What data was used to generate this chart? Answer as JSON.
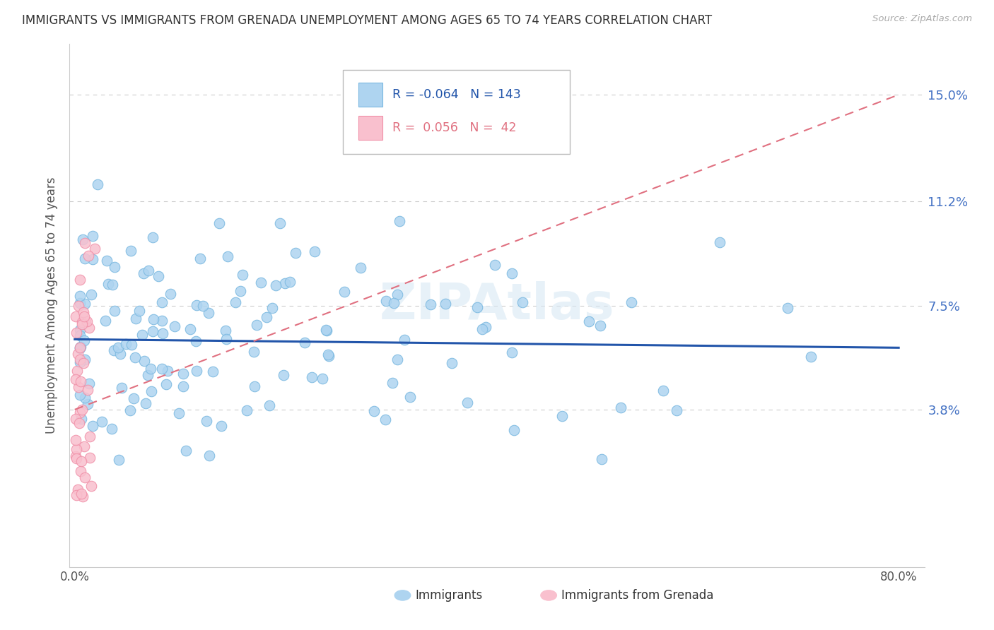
{
  "title": "IMMIGRANTS VS IMMIGRANTS FROM GRENADA UNEMPLOYMENT AMONG AGES 65 TO 74 YEARS CORRELATION CHART",
  "source": "Source: ZipAtlas.com",
  "ylabel": "Unemployment Among Ages 65 to 74 years",
  "xlim_min": -0.005,
  "xlim_max": 0.825,
  "ylim_min": -0.018,
  "ylim_max": 0.168,
  "ytick_positions": [
    0.038,
    0.075,
    0.112,
    0.15
  ],
  "ytick_labels": [
    "3.8%",
    "7.5%",
    "11.2%",
    "15.0%"
  ],
  "xtick_positions": [
    0.0,
    0.1,
    0.2,
    0.3,
    0.4,
    0.5,
    0.6,
    0.7,
    0.8
  ],
  "xtick_labels": [
    "0.0%",
    "",
    "",
    "",
    "",
    "",
    "",
    "",
    "80.0%"
  ],
  "blue_fill_color": "#aed4f0",
  "blue_edge_color": "#7ab8e0",
  "pink_fill_color": "#f9c0ce",
  "pink_edge_color": "#f090a8",
  "blue_line_color": "#2255aa",
  "pink_line_color": "#e07080",
  "grid_color": "#cccccc",
  "bg_color": "#ffffff",
  "title_color": "#333333",
  "source_color": "#aaaaaa",
  "ytick_color": "#4472c4",
  "xtick_color": "#555555",
  "ylabel_color": "#555555",
  "blue_trend_y0": 0.063,
  "blue_trend_y1": 0.06,
  "pink_trend_y0": 0.038,
  "pink_trend_y1": 0.15,
  "legend_label1": "Immigrants",
  "legend_label2": "Immigrants from Grenada",
  "watermark_color": "#d8e8f4",
  "watermark_alpha": 0.6,
  "n_blue": 143,
  "n_pink": 42
}
